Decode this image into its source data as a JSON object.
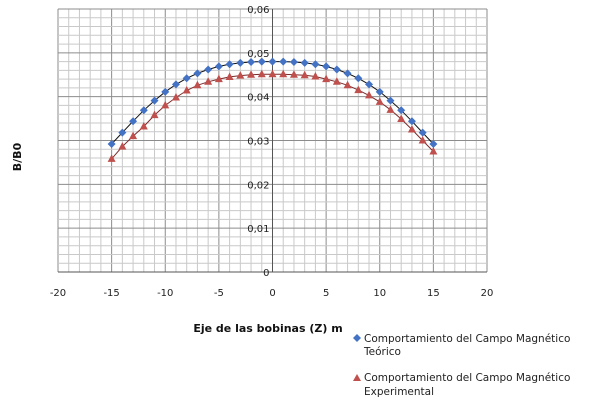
{
  "chart_data": {
    "type": "scatter",
    "title": "",
    "xlabel": "Eje de las bobinas (Z) m",
    "ylabel": "B/B0",
    "xlim": [
      -20,
      20
    ],
    "ylim": [
      0,
      0.06
    ],
    "x_ticks": [
      "-20",
      "-15",
      "-10",
      "-5",
      "0",
      "5",
      "10",
      "15",
      "20"
    ],
    "y_ticks": [
      "0",
      "0,01",
      "0,02",
      "0,03",
      "0,04",
      "0,05",
      "0,06"
    ],
    "grid": true,
    "legend_position": "bottom-right",
    "series": [
      {
        "name": "Comportamiento del Campo Magnético Teórico",
        "marker": "diamond",
        "color": "#4472C4",
        "x": [
          -15,
          -14,
          -13,
          -12,
          -11,
          -10,
          -9,
          -8,
          -7,
          -6,
          -5,
          -4,
          -3,
          -2,
          -1,
          0,
          1,
          2,
          3,
          4,
          5,
          6,
          7,
          8,
          9,
          10,
          11,
          12,
          13,
          14,
          15
        ],
        "y": [
          0.0292,
          0.0318,
          0.0344,
          0.0369,
          0.0391,
          0.0411,
          0.0428,
          0.0442,
          0.0453,
          0.0462,
          0.0469,
          0.0474,
          0.0477,
          0.0479,
          0.048,
          0.048,
          0.048,
          0.0479,
          0.0477,
          0.0474,
          0.0469,
          0.0462,
          0.0453,
          0.0442,
          0.0428,
          0.0411,
          0.0391,
          0.0369,
          0.0344,
          0.0318,
          0.0292
        ]
      },
      {
        "name": "Comportamiento del Campo Magnético Experimental",
        "marker": "triangle",
        "color": "#C0504D",
        "x": [
          -15,
          -14,
          -13,
          -12,
          -11,
          -10,
          -9,
          -8,
          -7,
          -6,
          -5,
          -4,
          -3,
          -2,
          -1,
          0,
          1,
          2,
          3,
          4,
          5,
          6,
          7,
          8,
          9,
          10,
          11,
          12,
          13,
          14,
          15
        ],
        "y": [
          0.0258,
          0.0286,
          0.031,
          0.0332,
          0.0358,
          0.038,
          0.0398,
          0.0414,
          0.0426,
          0.0434,
          0.044,
          0.0445,
          0.0448,
          0.045,
          0.0451,
          0.0451,
          0.0451,
          0.045,
          0.0449,
          0.0446,
          0.044,
          0.0434,
          0.0426,
          0.0415,
          0.0403,
          0.0388,
          0.037,
          0.0349,
          0.0325,
          0.03,
          0.0275
        ]
      }
    ]
  }
}
